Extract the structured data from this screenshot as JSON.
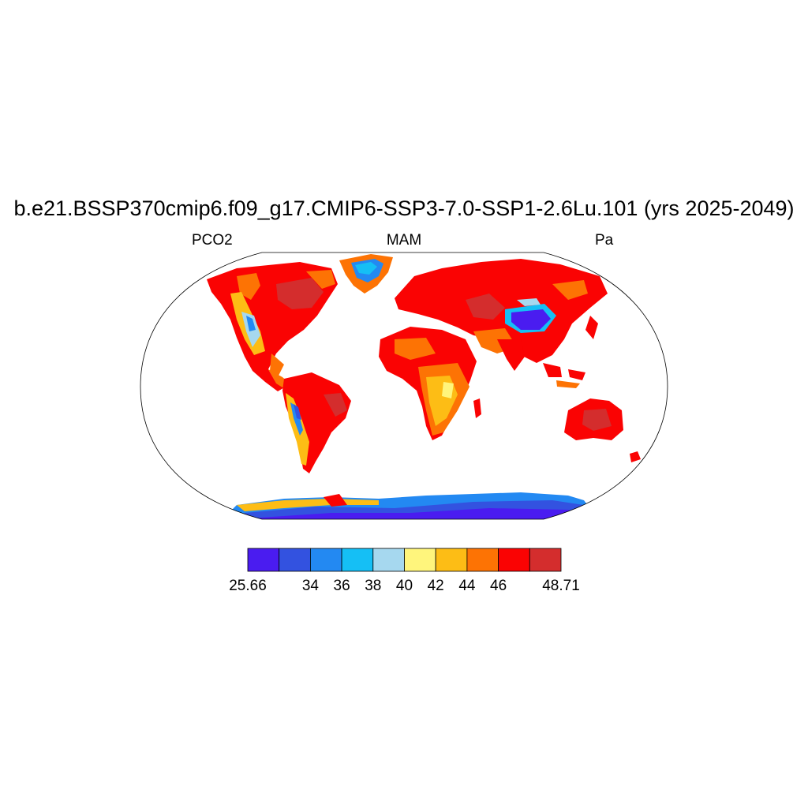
{
  "title": "b.e21.BSSP370cmip6.f09_g17.CMIP6-SSP3-7.0-SSP1-2.6Lu.101 (yrs 2025-2049)",
  "left_string": "PCO2",
  "center_string": "MAM",
  "right_string": "Pa",
  "colorbar": {
    "colors": [
      "#4a1cf0",
      "#3352e0",
      "#2389f2",
      "#15bff5",
      "#a6d8ef",
      "#fff57c",
      "#fdbd15",
      "#fd7304",
      "#fa0303",
      "#d42d2d"
    ],
    "labels": [
      "25.66",
      "34",
      "36",
      "38",
      "40",
      "42",
      "44",
      "46",
      "48.71"
    ],
    "label_boundaries": [
      0,
      2,
      3,
      4,
      5,
      6,
      7,
      8,
      10
    ]
  },
  "map": {
    "projection": "robinson",
    "ocean_color": "#ffffff",
    "land_base_color": "#fa0303"
  }
}
